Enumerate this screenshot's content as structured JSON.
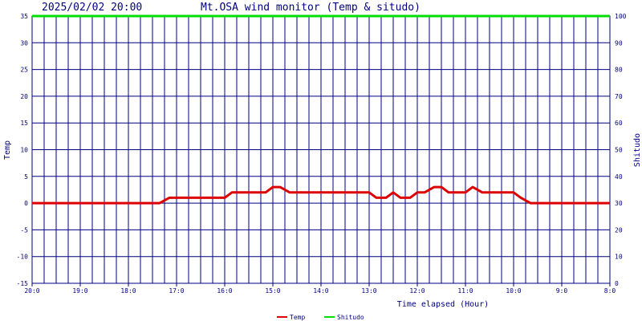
{
  "header": {
    "timestamp": "2025/02/02 20:00",
    "title": "Mt.OSA wind monitor (Temp & situdo)"
  },
  "chart_data": {
    "type": "line",
    "x_range": [
      0,
      24
    ],
    "x_direction": "reversed",
    "x_tick_labels": [
      "20:0",
      "19:0",
      "18:0",
      "17:0",
      "16:0",
      "15:0",
      "14:0",
      "13:0",
      "12:0",
      "11:0",
      "10:0",
      "9:0",
      "8:0"
    ],
    "xlabel": "Time elapsed (Hour)",
    "ylabel_left": "Temp",
    "ylabel_right": "Shitudo",
    "ylim_left": [
      -15,
      35
    ],
    "ylim_right": [
      0,
      100
    ],
    "y_ticks_left": [
      -15,
      -10,
      -5,
      0,
      5,
      10,
      15,
      20,
      25,
      30,
      35
    ],
    "y_ticks_right": [
      0,
      10,
      20,
      30,
      40,
      50,
      60,
      70,
      80,
      90,
      100
    ],
    "grid": true,
    "legend_position": "bottom-center",
    "colors": {
      "grid": "#000080",
      "text": "#000080",
      "temp": "#dd0000",
      "shitudo": "#00dd00"
    },
    "series": [
      {
        "name": "Temp",
        "axis": "left",
        "color": "#dd0000",
        "x": [
          0,
          5.3,
          5.7,
          8.0,
          8.3,
          9.7,
          10.0,
          10.3,
          10.7,
          11.0,
          14.0,
          14.3,
          14.7,
          15.0,
          15.3,
          15.7,
          16.0,
          16.3,
          16.7,
          17.0,
          17.3,
          17.7,
          18.0,
          18.3,
          18.7,
          19.0,
          19.3,
          20.0,
          20.3,
          20.7,
          24.0
        ],
        "values": [
          0,
          0,
          1,
          1,
          2,
          2,
          3,
          3,
          2,
          2,
          2,
          1,
          1,
          2,
          1,
          1,
          2,
          2,
          3,
          3,
          2,
          2,
          2,
          3,
          2,
          2,
          2,
          2,
          1,
          0,
          0
        ]
      },
      {
        "name": "Shitudo",
        "axis": "right",
        "color": "#00dd00",
        "x": [
          0,
          24
        ],
        "values": [
          100,
          100
        ]
      }
    ]
  }
}
